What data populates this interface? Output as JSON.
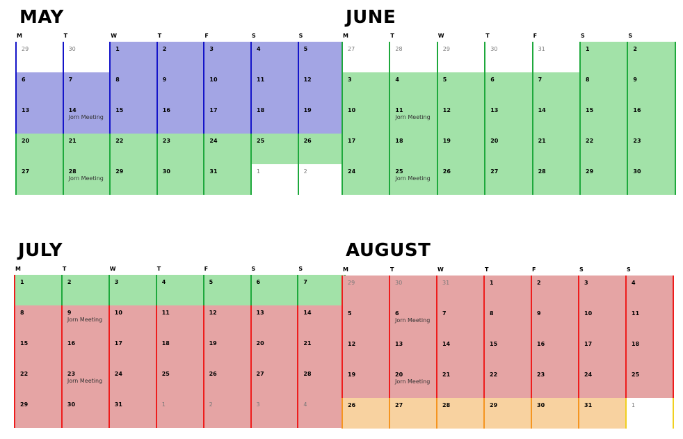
{
  "weekday_labels": [
    "M",
    "T",
    "W",
    "T",
    "F",
    "S",
    "S"
  ],
  "colors": {
    "blue": "#a3a5e4",
    "blue_line": "#1414c8",
    "green": "#a2e2a8",
    "green_line": "#1ea83c",
    "red": "#e5a4a4",
    "red_line": "#ee1c1c",
    "orange": "#f8d2a0",
    "orange_line": "#f59520",
    "white": "#ffffff",
    "yellow_line": "#f0d020"
  },
  "months": [
    {
      "name": "MAY",
      "weeks": [
        [
          {
            "d": "29",
            "bg": "white",
            "ln": "blue_line",
            "o": true
          },
          {
            "d": "30",
            "bg": "white",
            "ln": "blue_line",
            "o": true
          },
          {
            "d": "1",
            "bg": "blue",
            "ln": "blue_line"
          },
          {
            "d": "2",
            "bg": "blue",
            "ln": "blue_line"
          },
          {
            "d": "3",
            "bg": "blue",
            "ln": "blue_line"
          },
          {
            "d": "4",
            "bg": "blue",
            "ln": "blue_line"
          },
          {
            "d": "5",
            "bg": "blue",
            "ln": "blue_line"
          }
        ],
        [
          {
            "d": "6",
            "bg": "blue",
            "ln": "blue_line"
          },
          {
            "d": "7",
            "bg": "blue",
            "ln": "blue_line"
          },
          {
            "d": "8",
            "bg": "blue",
            "ln": "blue_line"
          },
          {
            "d": "9",
            "bg": "blue",
            "ln": "blue_line"
          },
          {
            "d": "10",
            "bg": "blue",
            "ln": "blue_line"
          },
          {
            "d": "11",
            "bg": "blue",
            "ln": "blue_line"
          },
          {
            "d": "12",
            "bg": "blue",
            "ln": "blue_line"
          }
        ],
        [
          {
            "d": "13",
            "bg": "blue",
            "ln": "blue_line"
          },
          {
            "d": "14",
            "bg": "blue",
            "ln": "blue_line",
            "e": "Jorn Meeting"
          },
          {
            "d": "15",
            "bg": "blue",
            "ln": "blue_line"
          },
          {
            "d": "16",
            "bg": "blue",
            "ln": "blue_line"
          },
          {
            "d": "17",
            "bg": "blue",
            "ln": "blue_line"
          },
          {
            "d": "18",
            "bg": "blue",
            "ln": "blue_line"
          },
          {
            "d": "19",
            "bg": "blue",
            "ln": "blue_line"
          }
        ],
        [
          {
            "d": "20",
            "bg": "green",
            "ln": "green_line"
          },
          {
            "d": "21",
            "bg": "green",
            "ln": "green_line"
          },
          {
            "d": "22",
            "bg": "green",
            "ln": "green_line"
          },
          {
            "d": "23",
            "bg": "green",
            "ln": "green_line"
          },
          {
            "d": "24",
            "bg": "green",
            "ln": "green_line"
          },
          {
            "d": "25",
            "bg": "green",
            "ln": "green_line"
          },
          {
            "d": "26",
            "bg": "green",
            "ln": "green_line"
          }
        ],
        [
          {
            "d": "27",
            "bg": "green",
            "ln": "green_line"
          },
          {
            "d": "28",
            "bg": "green",
            "ln": "green_line",
            "e": "Jorn Meeting"
          },
          {
            "d": "29",
            "bg": "green",
            "ln": "green_line"
          },
          {
            "d": "30",
            "bg": "green",
            "ln": "green_line"
          },
          {
            "d": "31",
            "bg": "green",
            "ln": "green_line"
          },
          {
            "d": "1",
            "bg": "white",
            "ln": "green_line",
            "o": true
          },
          {
            "d": "2",
            "bg": "white",
            "ln": "green_line",
            "o": true
          }
        ]
      ]
    },
    {
      "name": "JUNE",
      "weeks": [
        [
          {
            "d": "27",
            "bg": "white",
            "ln": "green_line",
            "o": true
          },
          {
            "d": "28",
            "bg": "white",
            "ln": "green_line",
            "o": true
          },
          {
            "d": "29",
            "bg": "white",
            "ln": "green_line",
            "o": true
          },
          {
            "d": "30",
            "bg": "white",
            "ln": "green_line",
            "o": true
          },
          {
            "d": "31",
            "bg": "white",
            "ln": "green_line",
            "o": true
          },
          {
            "d": "1",
            "bg": "green",
            "ln": "green_line"
          },
          {
            "d": "2",
            "bg": "green",
            "ln": "green_line"
          }
        ],
        [
          {
            "d": "3",
            "bg": "green",
            "ln": "green_line"
          },
          {
            "d": "4",
            "bg": "green",
            "ln": "green_line"
          },
          {
            "d": "5",
            "bg": "green",
            "ln": "green_line"
          },
          {
            "d": "6",
            "bg": "green",
            "ln": "green_line"
          },
          {
            "d": "7",
            "bg": "green",
            "ln": "green_line"
          },
          {
            "d": "8",
            "bg": "green",
            "ln": "green_line"
          },
          {
            "d": "9",
            "bg": "green",
            "ln": "green_line"
          }
        ],
        [
          {
            "d": "10",
            "bg": "green",
            "ln": "green_line"
          },
          {
            "d": "11",
            "bg": "green",
            "ln": "green_line",
            "e": "Jorn Meeting"
          },
          {
            "d": "12",
            "bg": "green",
            "ln": "green_line"
          },
          {
            "d": "13",
            "bg": "green",
            "ln": "green_line"
          },
          {
            "d": "14",
            "bg": "green",
            "ln": "green_line"
          },
          {
            "d": "15",
            "bg": "green",
            "ln": "green_line"
          },
          {
            "d": "16",
            "bg": "green",
            "ln": "green_line"
          }
        ],
        [
          {
            "d": "17",
            "bg": "green",
            "ln": "green_line"
          },
          {
            "d": "18",
            "bg": "green",
            "ln": "green_line"
          },
          {
            "d": "19",
            "bg": "green",
            "ln": "green_line"
          },
          {
            "d": "20",
            "bg": "green",
            "ln": "green_line"
          },
          {
            "d": "21",
            "bg": "green",
            "ln": "green_line"
          },
          {
            "d": "22",
            "bg": "green",
            "ln": "green_line"
          },
          {
            "d": "23",
            "bg": "green",
            "ln": "green_line"
          }
        ],
        [
          {
            "d": "24",
            "bg": "green",
            "ln": "green_line"
          },
          {
            "d": "25",
            "bg": "green",
            "ln": "green_line",
            "e": "Jorn Meeting"
          },
          {
            "d": "26",
            "bg": "green",
            "ln": "green_line"
          },
          {
            "d": "27",
            "bg": "green",
            "ln": "green_line"
          },
          {
            "d": "28",
            "bg": "green",
            "ln": "green_line"
          },
          {
            "d": "29",
            "bg": "green",
            "ln": "green_line"
          },
          {
            "d": "30",
            "bg": "green",
            "ln": "green_line"
          }
        ]
      ]
    },
    {
      "name": "JULY",
      "weeks": [
        [
          {
            "d": "1",
            "bg": "green",
            "ln": "red_line"
          },
          {
            "d": "2",
            "bg": "green",
            "ln": "green_line"
          },
          {
            "d": "3",
            "bg": "green",
            "ln": "green_line"
          },
          {
            "d": "4",
            "bg": "green",
            "ln": "green_line"
          },
          {
            "d": "5",
            "bg": "green",
            "ln": "green_line"
          },
          {
            "d": "6",
            "bg": "green",
            "ln": "green_line"
          },
          {
            "d": "7",
            "bg": "green",
            "ln": "green_line"
          }
        ],
        [
          {
            "d": "8",
            "bg": "red",
            "ln": "red_line"
          },
          {
            "d": "9",
            "bg": "red",
            "ln": "red_line",
            "e": "Jorn Meeting"
          },
          {
            "d": "10",
            "bg": "red",
            "ln": "red_line"
          },
          {
            "d": "11",
            "bg": "red",
            "ln": "red_line"
          },
          {
            "d": "12",
            "bg": "red",
            "ln": "red_line"
          },
          {
            "d": "13",
            "bg": "red",
            "ln": "red_line"
          },
          {
            "d": "14",
            "bg": "red",
            "ln": "red_line"
          }
        ],
        [
          {
            "d": "15",
            "bg": "red",
            "ln": "red_line"
          },
          {
            "d": "16",
            "bg": "red",
            "ln": "red_line"
          },
          {
            "d": "17",
            "bg": "red",
            "ln": "red_line"
          },
          {
            "d": "18",
            "bg": "red",
            "ln": "red_line"
          },
          {
            "d": "19",
            "bg": "red",
            "ln": "red_line"
          },
          {
            "d": "20",
            "bg": "red",
            "ln": "red_line"
          },
          {
            "d": "21",
            "bg": "red",
            "ln": "red_line"
          }
        ],
        [
          {
            "d": "22",
            "bg": "red",
            "ln": "red_line"
          },
          {
            "d": "23",
            "bg": "red",
            "ln": "red_line",
            "e": "Jorn Meeting"
          },
          {
            "d": "24",
            "bg": "red",
            "ln": "red_line"
          },
          {
            "d": "25",
            "bg": "red",
            "ln": "red_line"
          },
          {
            "d": "26",
            "bg": "red",
            "ln": "red_line"
          },
          {
            "d": "27",
            "bg": "red",
            "ln": "red_line"
          },
          {
            "d": "28",
            "bg": "red",
            "ln": "red_line"
          }
        ],
        [
          {
            "d": "29",
            "bg": "red",
            "ln": "red_line"
          },
          {
            "d": "30",
            "bg": "red",
            "ln": "red_line"
          },
          {
            "d": "31",
            "bg": "red",
            "ln": "red_line"
          },
          {
            "d": "1",
            "bg": "red",
            "ln": "red_line",
            "o": true
          },
          {
            "d": "2",
            "bg": "red",
            "ln": "red_line",
            "o": true
          },
          {
            "d": "3",
            "bg": "red",
            "ln": "red_line",
            "o": true
          },
          {
            "d": "4",
            "bg": "red",
            "ln": "red_line",
            "o": true
          }
        ]
      ]
    },
    {
      "name": "AUGUST",
      "weeks": [
        [
          {
            "d": "29",
            "bg": "red",
            "ln": "red_line",
            "o": true
          },
          {
            "d": "30",
            "bg": "red",
            "ln": "red_line",
            "o": true
          },
          {
            "d": "31",
            "bg": "red",
            "ln": "red_line",
            "o": true
          },
          {
            "d": "1",
            "bg": "red",
            "ln": "red_line"
          },
          {
            "d": "2",
            "bg": "red",
            "ln": "red_line"
          },
          {
            "d": "3",
            "bg": "red",
            "ln": "red_line"
          },
          {
            "d": "4",
            "bg": "red",
            "ln": "red_line"
          }
        ],
        [
          {
            "d": "5",
            "bg": "red",
            "ln": "red_line"
          },
          {
            "d": "6",
            "bg": "red",
            "ln": "red_line",
            "e": "Jorn Meeting"
          },
          {
            "d": "7",
            "bg": "red",
            "ln": "red_line"
          },
          {
            "d": "8",
            "bg": "red",
            "ln": "red_line"
          },
          {
            "d": "9",
            "bg": "red",
            "ln": "red_line"
          },
          {
            "d": "10",
            "bg": "red",
            "ln": "red_line"
          },
          {
            "d": "11",
            "bg": "red",
            "ln": "red_line"
          }
        ],
        [
          {
            "d": "12",
            "bg": "red",
            "ln": "red_line"
          },
          {
            "d": "13",
            "bg": "red",
            "ln": "red_line"
          },
          {
            "d": "14",
            "bg": "red",
            "ln": "red_line"
          },
          {
            "d": "15",
            "bg": "red",
            "ln": "red_line"
          },
          {
            "d": "16",
            "bg": "red",
            "ln": "red_line"
          },
          {
            "d": "17",
            "bg": "red",
            "ln": "red_line"
          },
          {
            "d": "18",
            "bg": "red",
            "ln": "red_line"
          }
        ],
        [
          {
            "d": "19",
            "bg": "red",
            "ln": "red_line"
          },
          {
            "d": "20",
            "bg": "red",
            "ln": "red_line",
            "e": "Jorn Meeting"
          },
          {
            "d": "21",
            "bg": "red",
            "ln": "red_line"
          },
          {
            "d": "22",
            "bg": "red",
            "ln": "red_line"
          },
          {
            "d": "23",
            "bg": "red",
            "ln": "red_line"
          },
          {
            "d": "24",
            "bg": "red",
            "ln": "red_line"
          },
          {
            "d": "25",
            "bg": "red",
            "ln": "red_line"
          }
        ],
        [
          {
            "d": "26",
            "bg": "orange",
            "ln": "orange_line"
          },
          {
            "d": "27",
            "bg": "orange",
            "ln": "orange_line"
          },
          {
            "d": "28",
            "bg": "orange",
            "ln": "orange_line"
          },
          {
            "d": "29",
            "bg": "orange",
            "ln": "orange_line"
          },
          {
            "d": "30",
            "bg": "orange",
            "ln": "orange_line"
          },
          {
            "d": "31",
            "bg": "orange",
            "ln": "orange_line"
          },
          {
            "d": "1",
            "bg": "white",
            "ln": "yellow_line",
            "o": true
          }
        ]
      ]
    }
  ]
}
